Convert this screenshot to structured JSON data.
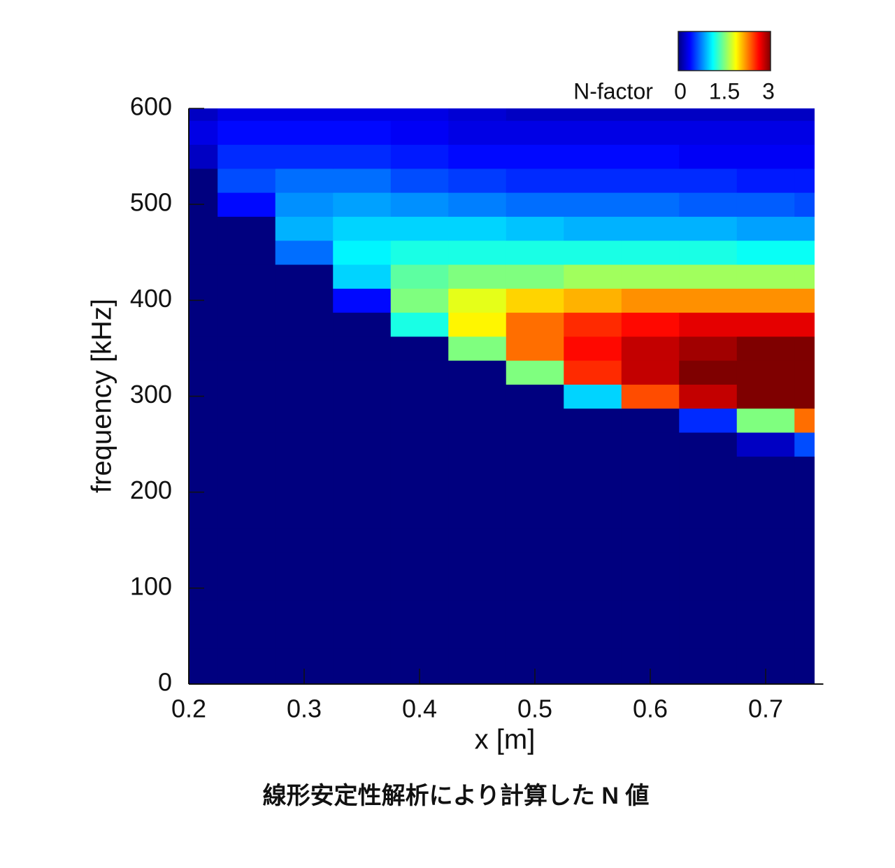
{
  "chart_data": {
    "type": "heatmap",
    "title": "線形安定性解析により計算した N 値",
    "xlabel": "x [m]",
    "ylabel": "frequency [kHz]",
    "colorbar_label": "N-factor",
    "xlim": [
      0.2,
      0.75
    ],
    "ylim": [
      0,
      600
    ],
    "xticks": [
      0.2,
      0.3,
      0.4,
      0.5,
      0.6,
      0.7
    ],
    "yticks": [
      0,
      100,
      200,
      300,
      400,
      500,
      600
    ],
    "clim": [
      0,
      3
    ],
    "colorbar_ticks": [
      0,
      1.5,
      3
    ],
    "colormap": [
      "#00007f",
      "#0000ff",
      "#007fff",
      "#00ffff",
      "#7fff7f",
      "#ffff00",
      "#ff7f00",
      "#ff0000",
      "#7f0000"
    ],
    "x": [
      0.2,
      0.25,
      0.3,
      0.35,
      0.4,
      0.45,
      0.5,
      0.55,
      0.6,
      0.65,
      0.7,
      0.75
    ],
    "y": [
      0,
      25,
      50,
      75,
      100,
      125,
      150,
      175,
      200,
      225,
      250,
      275,
      300,
      325,
      350,
      375,
      400,
      425,
      450,
      475,
      500,
      525,
      550,
      575,
      600
    ],
    "z": [
      [
        0,
        0,
        0,
        0,
        0,
        0,
        0,
        0,
        0,
        0,
        0,
        0
      ],
      [
        0,
        0,
        0,
        0,
        0,
        0,
        0,
        0,
        0,
        0,
        0,
        0
      ],
      [
        0,
        0,
        0,
        0,
        0,
        0,
        0,
        0,
        0,
        0,
        0,
        0
      ],
      [
        0,
        0,
        0,
        0,
        0,
        0,
        0,
        0,
        0,
        0,
        0,
        0
      ],
      [
        0,
        0,
        0,
        0,
        0,
        0,
        0,
        0,
        0,
        0,
        0,
        0
      ],
      [
        0,
        0,
        0,
        0,
        0,
        0,
        0,
        0,
        0,
        0,
        0,
        0
      ],
      [
        0,
        0,
        0,
        0,
        0,
        0,
        0,
        0,
        0,
        0,
        0,
        0
      ],
      [
        0,
        0,
        0,
        0,
        0,
        0,
        0,
        0,
        0,
        0,
        0,
        0
      ],
      [
        0,
        0,
        0,
        0,
        0,
        0,
        0,
        0,
        0,
        0,
        0,
        0
      ],
      [
        0,
        0,
        0,
        0,
        0,
        0,
        0,
        0,
        0,
        0,
        0,
        0
      ],
      [
        0,
        0,
        0,
        0,
        0,
        0,
        0,
        0,
        0,
        0,
        0.2,
        0.6
      ],
      [
        0,
        0,
        0,
        0,
        0,
        0,
        0,
        0,
        0,
        0.5,
        1.5,
        2.3
      ],
      [
        0,
        0,
        0,
        0,
        0,
        0,
        0,
        1.0,
        2.4,
        2.8,
        3.0,
        3.0
      ],
      [
        0,
        0,
        0,
        0,
        0,
        0,
        1.5,
        2.5,
        2.8,
        3.0,
        3.1,
        3.1
      ],
      [
        0,
        0,
        0,
        0,
        0,
        1.5,
        2.3,
        2.6,
        2.8,
        2.9,
        3.0,
        3.0
      ],
      [
        0,
        0,
        0,
        0,
        1.2,
        1.9,
        2.3,
        2.5,
        2.6,
        2.7,
        2.7,
        2.7
      ],
      [
        0,
        0,
        0,
        0.4,
        1.5,
        1.8,
        2.0,
        2.1,
        2.2,
        2.2,
        2.2,
        2.2
      ],
      [
        0,
        0,
        0,
        1.0,
        1.4,
        1.5,
        1.5,
        1.6,
        1.6,
        1.6,
        1.6,
        1.6
      ],
      [
        0,
        0,
        0.7,
        1.1,
        1.2,
        1.2,
        1.2,
        1.2,
        1.2,
        1.2,
        1.15,
        1.15
      ],
      [
        0,
        0,
        0.9,
        1.0,
        1.0,
        1.0,
        0.95,
        0.9,
        0.9,
        0.9,
        0.85,
        0.85
      ],
      [
        0,
        0.4,
        0.8,
        0.85,
        0.8,
        0.75,
        0.7,
        0.7,
        0.7,
        0.65,
        0.65,
        0.6
      ],
      [
        0,
        0.6,
        0.7,
        0.7,
        0.6,
        0.55,
        0.5,
        0.5,
        0.5,
        0.5,
        0.45,
        0.45
      ],
      [
        0.2,
        0.5,
        0.5,
        0.5,
        0.45,
        0.4,
        0.4,
        0.4,
        0.4,
        0.35,
        0.35,
        0.35
      ],
      [
        0.3,
        0.4,
        0.4,
        0.4,
        0.35,
        0.3,
        0.3,
        0.3,
        0.3,
        0.3,
        0.3,
        0.3
      ],
      [
        0.2,
        0.3,
        0.3,
        0.3,
        0.3,
        0.25,
        0.2,
        0.2,
        0.2,
        0.2,
        0.2,
        0.2
      ]
    ]
  }
}
